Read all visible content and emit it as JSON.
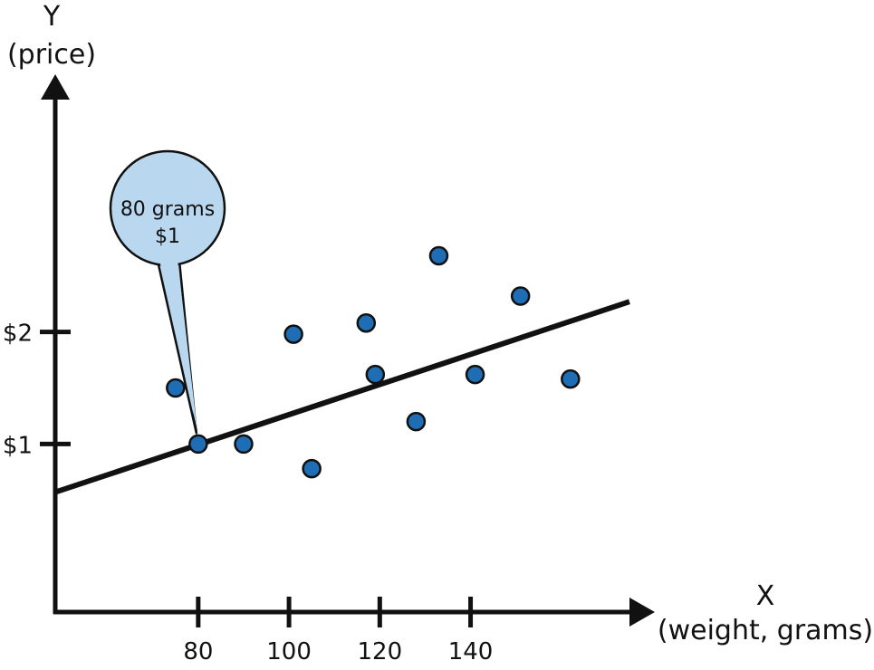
{
  "chart_data": {
    "type": "scatter",
    "title": "",
    "ylabel": {
      "letter": "Y",
      "name": "(price)"
    },
    "xlabel": {
      "letter": "X",
      "name": "(weight, grams)"
    },
    "x_ticks": [
      {
        "value": 80,
        "label": "80"
      },
      {
        "value": 100,
        "label": "100"
      },
      {
        "value": 120,
        "label": "120"
      },
      {
        "value": 140,
        "label": "140"
      }
    ],
    "y_ticks": [
      {
        "value": 1,
        "label": "$1"
      },
      {
        "value": 2,
        "label": "$2"
      }
    ],
    "xlim": [
      48.5,
      179
    ],
    "ylim": [
      -0.5,
      4.3
    ],
    "points": [
      {
        "x": 75,
        "y": 1.5
      },
      {
        "x": 80,
        "y": 1.0
      },
      {
        "x": 90,
        "y": 1.0
      },
      {
        "x": 101,
        "y": 1.98
      },
      {
        "x": 105,
        "y": 0.78
      },
      {
        "x": 117,
        "y": 2.08
      },
      {
        "x": 119,
        "y": 1.62
      },
      {
        "x": 128,
        "y": 1.2
      },
      {
        "x": 133,
        "y": 2.68
      },
      {
        "x": 141,
        "y": 1.62
      },
      {
        "x": 151,
        "y": 2.32
      },
      {
        "x": 162,
        "y": 1.58
      }
    ],
    "trend_line": {
      "x": [
        48.5,
        175
      ],
      "y": [
        0.57,
        2.27
      ]
    },
    "callout": {
      "line1": "80 grams",
      "line2": "$1",
      "point_x": 80,
      "point_y": 1.0
    },
    "point_color": "#1f6eb5",
    "callout_color": "#b9d7ef",
    "grid": false,
    "legend": "none"
  }
}
